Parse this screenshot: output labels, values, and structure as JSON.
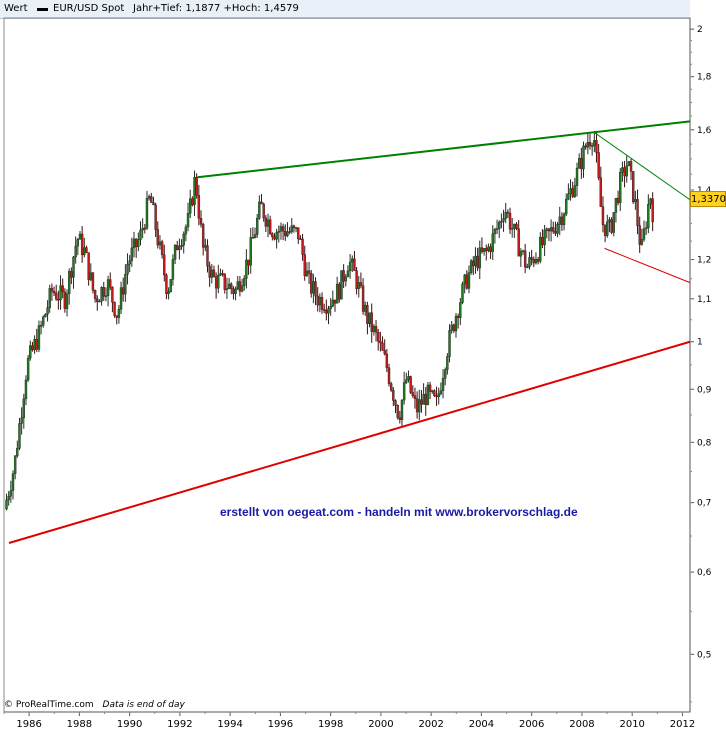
{
  "header": {
    "series_label": "Wert",
    "instrument": "EUR/USD Spot",
    "stats": "Jahr+Tief: 1,1877 +Hoch: 1,4579"
  },
  "footer": {
    "brand": "© ProRealTime.com",
    "note": "Data is end of day"
  },
  "watermark": "erstellt von oegeat.com - handeln mit www.brokervorschlag.de",
  "last_price": "1,3370",
  "chart_data": {
    "type": "candlestick",
    "title": "EUR/USD Spot",
    "y_scale": "log",
    "ylim": [
      0.44,
      2.05
    ],
    "xlim": [
      1985.0,
      2012.3
    ],
    "x_ticks": [
      "1986",
      "1988",
      "1990",
      "1992",
      "1994",
      "1996",
      "1998",
      "2000",
      "2002",
      "2004",
      "2006",
      "2008",
      "2010",
      "2012"
    ],
    "y_ticks": [
      {
        "value": 2.0,
        "label": "2"
      },
      {
        "value": 1.8,
        "label": "1,8"
      },
      {
        "value": 1.6,
        "label": "1,6"
      },
      {
        "value": 1.4,
        "label": "1,4"
      },
      {
        "value": 1.2,
        "label": "1,2"
      },
      {
        "value": 1.1,
        "label": "1,1"
      },
      {
        "value": 1.0,
        "label": "1"
      },
      {
        "value": 0.9,
        "label": "0,9"
      },
      {
        "value": 0.8,
        "label": "0,8"
      },
      {
        "value": 0.7,
        "label": "0,7"
      },
      {
        "value": 0.6,
        "label": "0,6"
      },
      {
        "value": 0.5,
        "label": "0,5"
      }
    ],
    "price_path": [
      [
        1985.1,
        0.69
      ],
      [
        1985.5,
        0.76
      ],
      [
        1986.0,
        0.95
      ],
      [
        1986.5,
        1.02
      ],
      [
        1987.0,
        1.12
      ],
      [
        1987.5,
        1.1
      ],
      [
        1988.0,
        1.26
      ],
      [
        1988.3,
        1.22
      ],
      [
        1988.7,
        1.1
      ],
      [
        1989.2,
        1.14
      ],
      [
        1989.6,
        1.06
      ],
      [
        1990.0,
        1.19
      ],
      [
        1990.5,
        1.26
      ],
      [
        1990.9,
        1.38
      ],
      [
        1991.3,
        1.22
      ],
      [
        1991.6,
        1.12
      ],
      [
        1992.0,
        1.25
      ],
      [
        1992.4,
        1.3
      ],
      [
        1992.7,
        1.44
      ],
      [
        1993.0,
        1.23
      ],
      [
        1993.4,
        1.15
      ],
      [
        1993.8,
        1.14
      ],
      [
        1994.3,
        1.12
      ],
      [
        1994.8,
        1.2
      ],
      [
        1995.3,
        1.35
      ],
      [
        1995.8,
        1.28
      ],
      [
        1996.3,
        1.28
      ],
      [
        1996.8,
        1.27
      ],
      [
        1997.2,
        1.14
      ],
      [
        1997.6,
        1.1
      ],
      [
        1998.0,
        1.09
      ],
      [
        1998.4,
        1.12
      ],
      [
        1998.8,
        1.2
      ],
      [
        1999.1,
        1.15
      ],
      [
        1999.5,
        1.06
      ],
      [
        1999.9,
        1.01
      ],
      [
        2000.3,
        0.95
      ],
      [
        2000.8,
        0.85
      ],
      [
        2001.1,
        0.92
      ],
      [
        2001.5,
        0.86
      ],
      [
        2001.9,
        0.89
      ],
      [
        2002.3,
        0.87
      ],
      [
        2002.7,
        0.98
      ],
      [
        2003.1,
        1.07
      ],
      [
        2003.5,
        1.15
      ],
      [
        2003.9,
        1.2
      ],
      [
        2004.3,
        1.22
      ],
      [
        2004.8,
        1.3
      ],
      [
        2005.0,
        1.35
      ],
      [
        2005.4,
        1.27
      ],
      [
        2005.9,
        1.18
      ],
      [
        2006.3,
        1.22
      ],
      [
        2006.8,
        1.27
      ],
      [
        2007.3,
        1.33
      ],
      [
        2007.8,
        1.43
      ],
      [
        2008.3,
        1.56
      ],
      [
        2008.55,
        1.59
      ],
      [
        2008.9,
        1.3
      ],
      [
        2009.2,
        1.28
      ],
      [
        2009.6,
        1.42
      ],
      [
        2009.9,
        1.49
      ],
      [
        2010.2,
        1.36
      ],
      [
        2010.45,
        1.22
      ],
      [
        2010.8,
        1.39
      ],
      [
        2010.9,
        1.337
      ]
    ],
    "trendlines": [
      {
        "color": "#008000",
        "from": [
          1992.7,
          1.44
        ],
        "to": [
          2012.3,
          1.63
        ]
      },
      {
        "color": "#008000",
        "from": [
          2008.5,
          1.59
        ],
        "to": [
          2012.3,
          1.37
        ]
      },
      {
        "color": "#e00000",
        "from": [
          1985.2,
          0.64
        ],
        "to": [
          2012.3,
          1.0
        ]
      },
      {
        "color": "#e00000",
        "from": [
          2008.9,
          1.23
        ],
        "to": [
          2012.3,
          1.14
        ]
      }
    ]
  }
}
